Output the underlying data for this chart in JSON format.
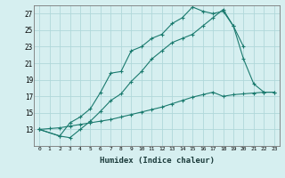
{
  "xlabel": "Humidex (Indice chaleur)",
  "background_color": "#d6eff0",
  "grid_color": "#b0d8da",
  "line_color": "#1a7a6e",
  "xlim": [
    -0.5,
    23.5
  ],
  "ylim": [
    11,
    28
  ],
  "xticks": [
    0,
    1,
    2,
    3,
    4,
    5,
    6,
    7,
    8,
    9,
    10,
    11,
    12,
    13,
    14,
    15,
    16,
    17,
    18,
    19,
    20,
    21,
    22,
    23
  ],
  "yticks": [
    13,
    15,
    17,
    19,
    21,
    23,
    25,
    27
  ],
  "line1_x": [
    0,
    1,
    2,
    3,
    4,
    5,
    6,
    7,
    8,
    9,
    10,
    11,
    12,
    13,
    14,
    15,
    16,
    17,
    18,
    19,
    20,
    21,
    22,
    23
  ],
  "line1_y": [
    13,
    13.1,
    13.2,
    13.4,
    13.6,
    13.8,
    14.0,
    14.2,
    14.5,
    14.8,
    15.1,
    15.4,
    15.7,
    16.1,
    16.5,
    16.9,
    17.2,
    17.5,
    17.0,
    17.2,
    17.3,
    17.4,
    17.5,
    17.5
  ],
  "line2_x": [
    0,
    2,
    3,
    4,
    5,
    6,
    7,
    8,
    9,
    10,
    11,
    12,
    13,
    14,
    15,
    16,
    17,
    18,
    19,
    20
  ],
  "line2_y": [
    13,
    12.2,
    13.8,
    14.5,
    15.5,
    17.5,
    19.8,
    20.0,
    22.5,
    23.0,
    24.0,
    24.5,
    25.8,
    26.5,
    27.8,
    27.3,
    27.0,
    27.3,
    25.5,
    23.0
  ],
  "line3_x": [
    0,
    2,
    3,
    4,
    5,
    6,
    7,
    8,
    9,
    10,
    11,
    12,
    13,
    14,
    15,
    16,
    17,
    18,
    19,
    20,
    21,
    22,
    23
  ],
  "line3_y": [
    13,
    12.2,
    12.0,
    13.0,
    14.0,
    15.2,
    16.5,
    17.3,
    18.8,
    20.0,
    21.5,
    22.5,
    23.5,
    24.0,
    24.5,
    25.5,
    26.5,
    27.5,
    25.5,
    21.5,
    18.5,
    17.5,
    17.5
  ]
}
